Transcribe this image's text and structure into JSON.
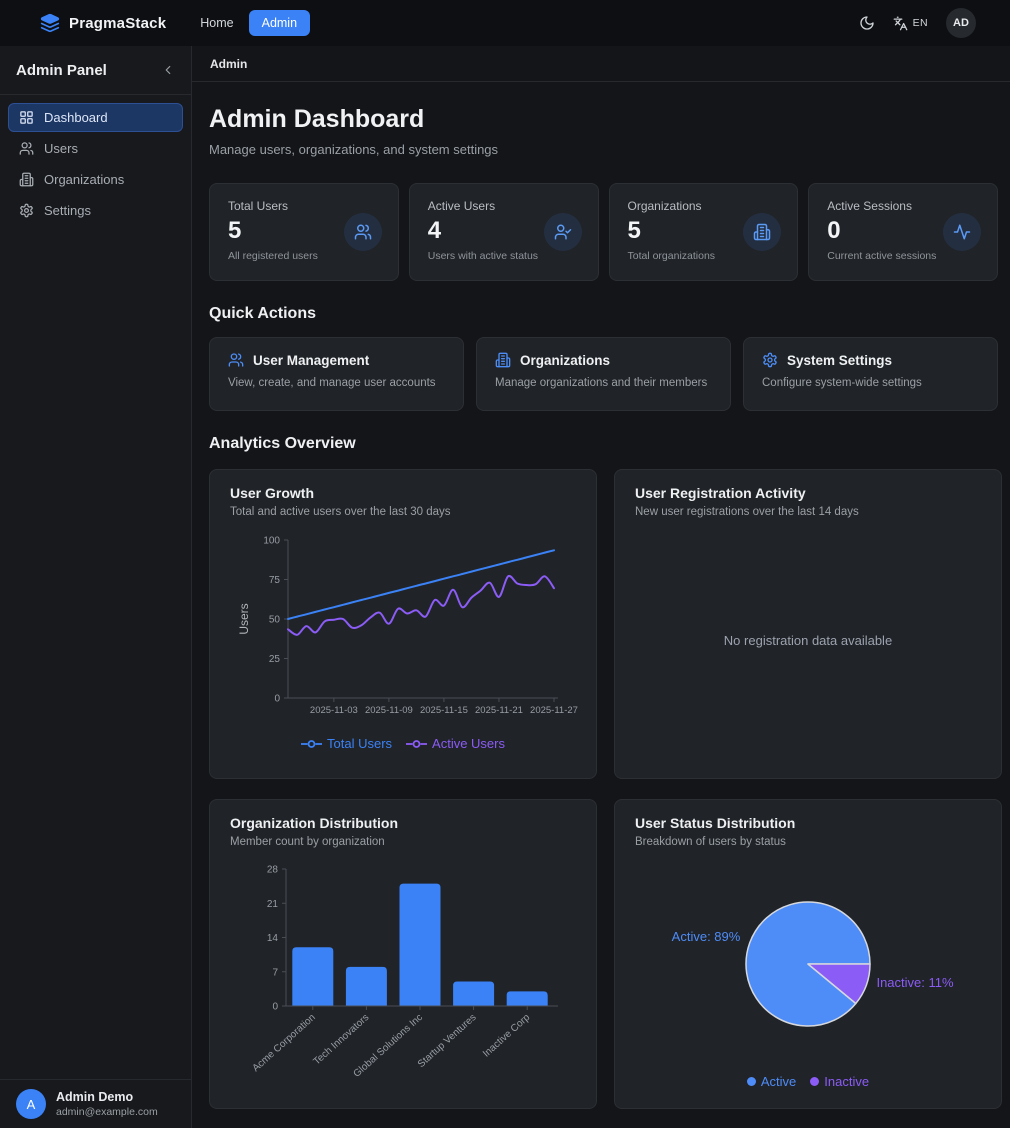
{
  "navbar": {
    "brand": "PragmaStack",
    "logo_icon": "layers",
    "links": [
      {
        "label": "Home"
      },
      {
        "label": "Admin"
      }
    ],
    "theme_icon": "moon",
    "lang_icon": "languages",
    "lang": "EN",
    "avatar": "AD"
  },
  "sidebar": {
    "title": "Admin Panel",
    "collapse_icon": "chevron-left",
    "items": [
      {
        "label": "Dashboard",
        "icon": "dashboard"
      },
      {
        "label": "Users",
        "icon": "users"
      },
      {
        "label": "Organizations",
        "icon": "building"
      },
      {
        "label": "Settings",
        "icon": "settings"
      }
    ],
    "user": {
      "initial": "A",
      "name": "Admin Demo",
      "email": "admin@example.com"
    }
  },
  "breadcrumb": "Admin",
  "header": {
    "title": "Admin Dashboard",
    "subtitle": "Manage users, organizations, and system settings"
  },
  "stats": [
    {
      "label": "Total Users",
      "value": "5",
      "description": "All registered users",
      "icon": "users"
    },
    {
      "label": "Active Users",
      "value": "4",
      "description": "Users with active status",
      "icon": "user-check"
    },
    {
      "label": "Organizations",
      "value": "5",
      "description": "Total organizations",
      "icon": "building"
    },
    {
      "label": "Active Sessions",
      "value": "0",
      "description": "Current active sessions",
      "icon": "activity"
    }
  ],
  "quick_actions": {
    "heading": "Quick Actions",
    "cards": [
      {
        "title": "User Management",
        "description": "View, create, and manage user accounts",
        "icon": "users"
      },
      {
        "title": "Organizations",
        "description": "Manage organizations and their members",
        "icon": "building"
      },
      {
        "title": "System Settings",
        "description": "Configure system-wide settings",
        "icon": "settings"
      }
    ]
  },
  "analytics_heading": "Analytics Overview",
  "chart_data": [
    {
      "type": "line",
      "title": "User Growth",
      "subtitle": "Total and active users over the last 30 days",
      "ylabel": "Users",
      "ylim": [
        0,
        100
      ],
      "yticks": [
        0,
        25,
        50,
        75,
        100
      ],
      "xticks": [
        "2025-11-03",
        "2025-11-09",
        "2025-11-15",
        "2025-11-21",
        "2025-11-27"
      ],
      "xtick_indices": [
        5,
        11,
        17,
        23,
        29
      ],
      "series": [
        {
          "name": "Total Users",
          "color": "#3b82f6",
          "values": [
            50,
            51.5,
            53,
            54.5,
            56,
            57.5,
            59,
            60.5,
            62,
            63.5,
            65,
            66.5,
            68,
            69.5,
            71,
            72.5,
            74,
            75.5,
            77,
            78.5,
            80,
            81.5,
            83,
            84.5,
            86,
            87.5,
            89,
            90.5,
            92,
            93.5
          ]
        },
        {
          "name": "Active Users",
          "color": "#8b5cf6",
          "values": [
            43.5,
            40,
            45.5,
            41.5,
            48.5,
            49.5,
            50,
            44.5,
            46,
            51,
            54,
            47,
            56.5,
            53.5,
            55.5,
            51.5,
            62,
            58.5,
            68.5,
            57.5,
            63.5,
            68,
            73,
            64,
            77,
            72.5,
            71.5,
            72,
            77,
            69.5
          ]
        }
      ]
    },
    {
      "type": "empty",
      "title": "User Registration Activity",
      "subtitle": "New user registrations over the last 14 days",
      "empty_message": "No registration data available"
    },
    {
      "type": "bar",
      "title": "Organization Distribution",
      "subtitle": "Member count by organization",
      "categories": [
        "Acme Corporation",
        "Tech Innovators",
        "Global Solutions Inc",
        "Startup Ventures",
        "Inactive Corp"
      ],
      "values": [
        12,
        8,
        25,
        5,
        3
      ],
      "ylim": [
        0,
        28
      ],
      "yticks": [
        0,
        7,
        14,
        21,
        28
      ],
      "color": "#3b82f6"
    },
    {
      "type": "pie",
      "title": "User Status Distribution",
      "subtitle": "Breakdown of users by status",
      "slices": [
        {
          "name": "Active",
          "pct": 89,
          "color": "#4e8cf8",
          "label": "Active: 89%"
        },
        {
          "name": "Inactive",
          "pct": 11,
          "color": "#8b5cf6",
          "label": "Inactive: 11%"
        }
      ]
    }
  ]
}
